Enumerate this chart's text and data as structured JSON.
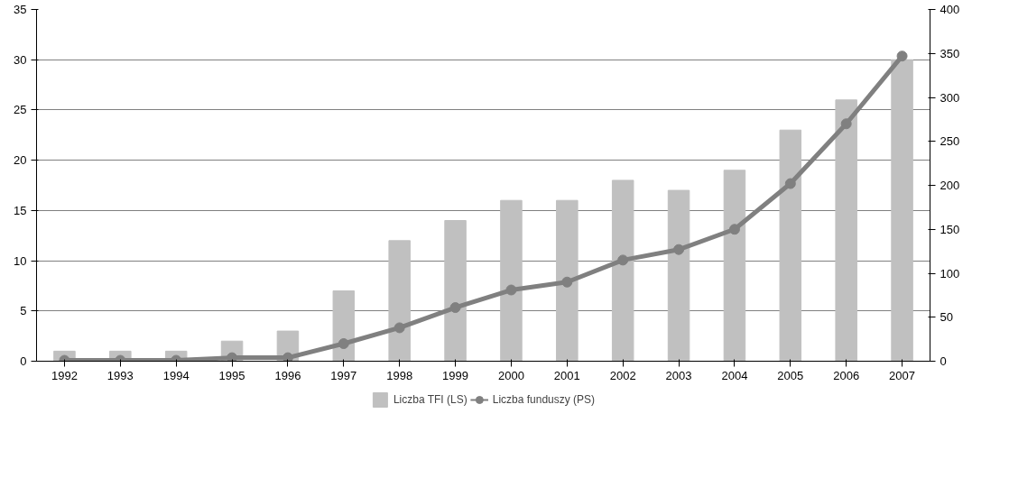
{
  "chart_data": {
    "type": "bar",
    "categories": [
      "1992",
      "1993",
      "1994",
      "1995",
      "1996",
      "1997",
      "1998",
      "1999",
      "2000",
      "2001",
      "2002",
      "2003",
      "2004",
      "2005",
      "2006",
      "2007"
    ],
    "series": [
      {
        "name": "Liczba TFI (LS)",
        "color": "#c0c0c0",
        "values": [
          1,
          1,
          1,
          2,
          3,
          7,
          12,
          14,
          16,
          16,
          18,
          17,
          19,
          23,
          26,
          30
        ]
      },
      {
        "name": "Liczba funduszy (PS)",
        "type": "line",
        "axis": "y2",
        "color": "#808080",
        "marker": "circle",
        "values": [
          1,
          1,
          1,
          4,
          4,
          20,
          38,
          61,
          81,
          90,
          115,
          127,
          150,
          202,
          270,
          347
        ]
      }
    ],
    "ylim": [
      0,
      35
    ],
    "yticks": [
      0,
      5,
      10,
      15,
      20,
      25,
      30,
      35
    ],
    "y2lim": [
      0,
      400
    ],
    "y2ticks": [
      0,
      50,
      100,
      150,
      200,
      250,
      300,
      350,
      400
    ],
    "grid": "y",
    "legend": "bottom"
  }
}
